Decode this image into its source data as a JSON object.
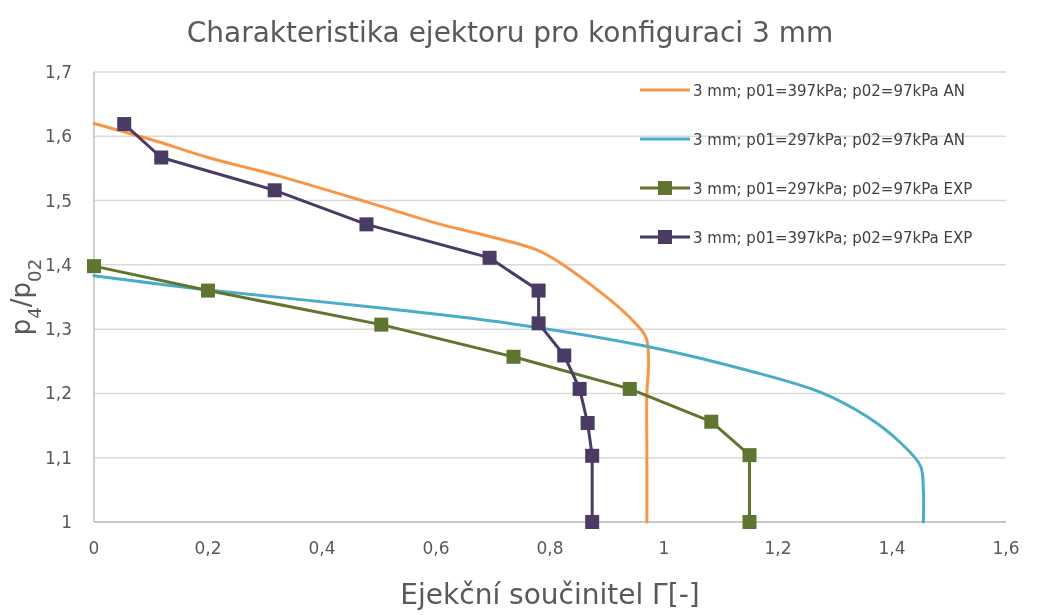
{
  "chart_data": {
    "type": "line",
    "title": "Charakteristika ejektoru pro konfiguraci 3 mm",
    "xlabel": "Ejekční součinitel Γ[-]",
    "ylabel": "p$_{4}$/p$_{02}$",
    "xlim": [
      0,
      1.6
    ],
    "ylim": [
      1,
      1.7
    ],
    "xticks": [
      0,
      {
        "value": 0.2,
        "label": "0,2"
      },
      {
        "value": 0.4,
        "label": "0,4"
      },
      {
        "value": 0.6,
        "label": "0,6"
      },
      {
        "value": 0.8,
        "label": "0,8"
      },
      1,
      {
        "value": 1.2,
        "label": "1,2"
      },
      {
        "value": 1.4,
        "label": "1,4"
      },
      {
        "value": 1.6,
        "label": "1,6"
      }
    ],
    "yticks": [
      1,
      {
        "value": 1.1,
        "label": "1,1"
      },
      {
        "value": 1.2,
        "label": "1,2"
      },
      {
        "value": 1.3,
        "label": "1,3"
      },
      {
        "value": 1.4,
        "label": "1,4"
      },
      {
        "value": 1.5,
        "label": "1,5"
      },
      {
        "value": 1.6,
        "label": "1,6"
      },
      {
        "value": 1.7,
        "label": "1,7"
      }
    ],
    "grid": "y",
    "legend": "top right",
    "series": [
      {
        "name": "3 mm; p01=397kPa; p02=97kPa AN",
        "color": "#f79646",
        "marker": "none",
        "x": [
          0,
          0.1,
          0.2,
          0.317,
          0.478,
          0.6,
          0.694,
          0.785,
          0.885,
          0.94,
          0.968,
          0.973,
          0.97,
          0.97,
          0.97
        ],
        "values": [
          1.62,
          1.595,
          1.567,
          1.54,
          1.498,
          1.465,
          1.444,
          1.42,
          1.36,
          1.318,
          1.288,
          1.25,
          1.2,
          1.1,
          1.0
        ]
      },
      {
        "name": "3 mm; p01=297kPa; p02=97kPa AN",
        "color": "#4bacc6",
        "marker": "none",
        "x": [
          0,
          0.2,
          0.504,
          0.713,
          0.971,
          1.146,
          1.274,
          1.356,
          1.414,
          1.45,
          1.455,
          1.455
        ],
        "values": [
          1.383,
          1.361,
          1.333,
          1.311,
          1.273,
          1.236,
          1.202,
          1.164,
          1.124,
          1.087,
          1.05,
          1.0
        ]
      },
      {
        "name": "3 mm; p01=297kPa; p02=97kPa EXP",
        "color": "#5f7530",
        "marker": "square",
        "x": [
          0,
          0.2,
          0.504,
          0.736,
          0.94,
          1.083,
          1.15,
          1.15
        ],
        "values": [
          1.398,
          1.36,
          1.307,
          1.257,
          1.207,
          1.156,
          1.104,
          1.0
        ]
      },
      {
        "name": "3 mm; p01=397kPa; p02=97kPa EXP",
        "color": "#4a3b64",
        "marker": "square",
        "x": [
          0.053,
          0.118,
          0.317,
          0.478,
          0.694,
          0.78,
          0.78,
          0.825,
          0.852,
          0.866,
          0.874,
          0.874
        ],
        "values": [
          1.619,
          1.567,
          1.516,
          1.463,
          1.411,
          1.36,
          1.309,
          1.259,
          1.207,
          1.154,
          1.103,
          1.0
        ]
      }
    ]
  }
}
